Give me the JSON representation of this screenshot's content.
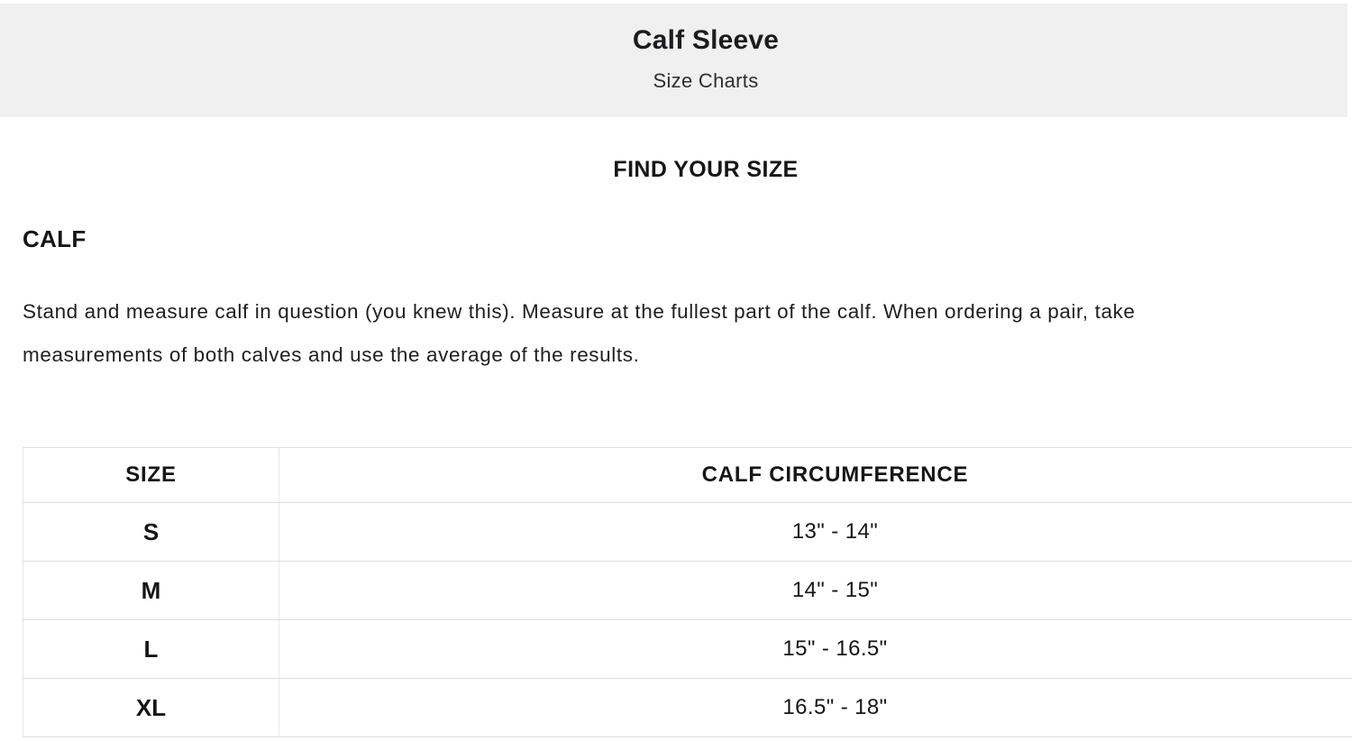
{
  "header": {
    "title": "Calf Sleeve",
    "subtitle": "Size Charts"
  },
  "page": {
    "section_heading": "FIND YOUR SIZE",
    "category_heading": "CALF",
    "description_line1": "Stand and measure calf in question (you knew this). Measure at the fullest part of the calf. When ordering a pair, take",
    "description_line2": "measurements of both calves and use the average of the results."
  },
  "table": {
    "columns": {
      "size": "SIZE",
      "circumference": "CALF CIRCUMFERENCE"
    },
    "rows": [
      {
        "size": "S",
        "circumference": "13\" - 14\""
      },
      {
        "size": "M",
        "circumference": "14\" - 15\""
      },
      {
        "size": "L",
        "circumference": "15\" - 16.5\""
      },
      {
        "size": "XL",
        "circumference": "16.5\" - 18\""
      }
    ]
  },
  "colors": {
    "banner_bg": "#f0f0f1",
    "text": "#1a1a1a",
    "table_border": "#dedede"
  }
}
